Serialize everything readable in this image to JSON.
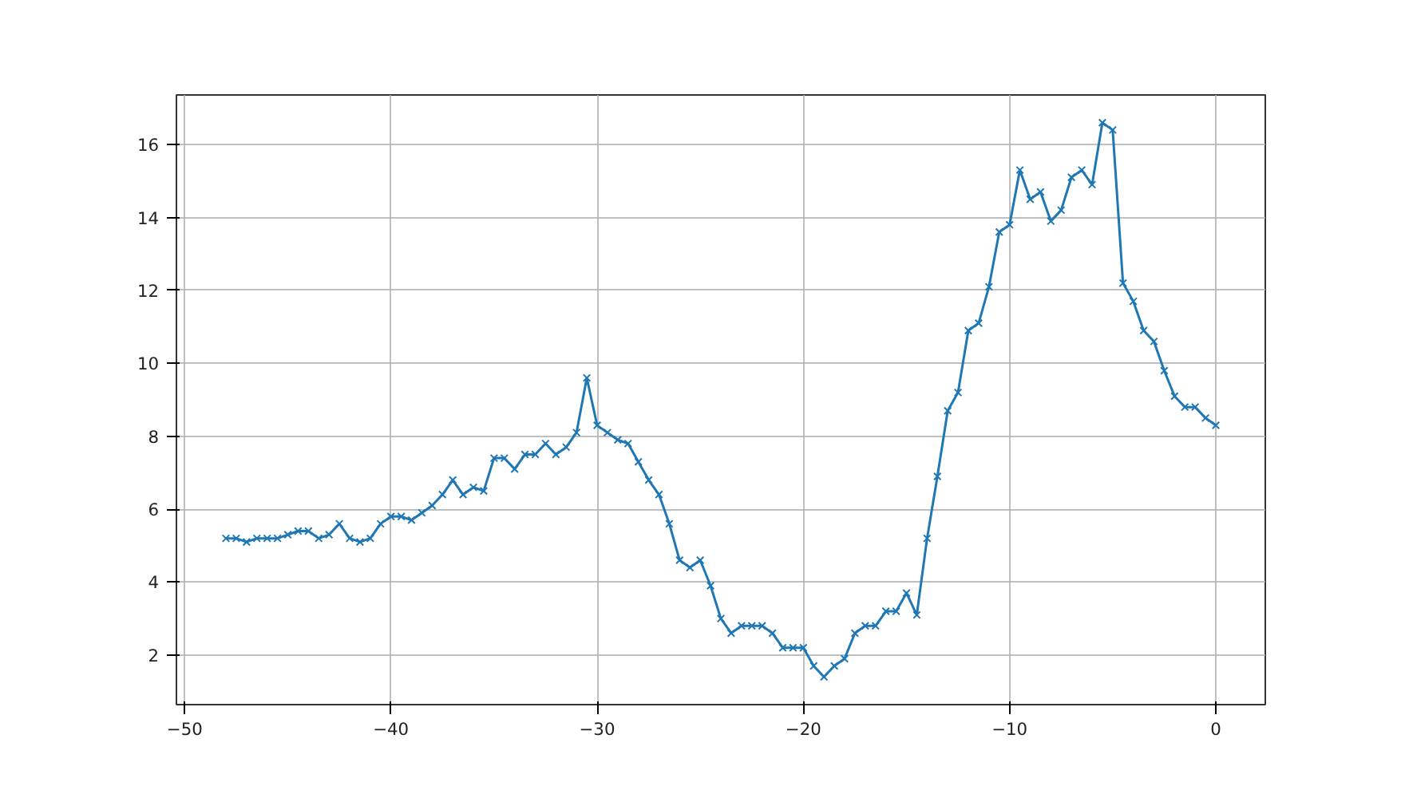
{
  "chart_data": {
    "type": "line",
    "marker": "cross",
    "line_style": "solid",
    "grid": true,
    "x": [
      -48,
      -47.5,
      -47,
      -46.5,
      -46,
      -45.5,
      -45,
      -44.5,
      -44,
      -43.5,
      -43,
      -42.5,
      -42,
      -41.5,
      -41,
      -40.5,
      -40,
      -39.5,
      -39,
      -38.5,
      -38,
      -37.5,
      -37,
      -36.5,
      -36,
      -35.5,
      -35,
      -34.5,
      -34,
      -33.5,
      -33,
      -32.5,
      -32,
      -31.5,
      -31,
      -30.5,
      -30,
      -29.5,
      -29,
      -28.5,
      -28,
      -27.5,
      -27,
      -26.5,
      -26,
      -25.5,
      -25,
      -24.5,
      -24,
      -23.5,
      -23,
      -22.5,
      -22,
      -21.5,
      -21,
      -20.5,
      -20,
      -19.5,
      -19,
      -18.5,
      -18,
      -17.5,
      -17,
      -16.5,
      -16,
      -15.5,
      -15,
      -14.5,
      -14,
      -13.5,
      -13,
      -12.5,
      -12,
      -11.5,
      -11,
      -10.5,
      -10,
      -9.5,
      -9,
      -8.5,
      -8,
      -7.5,
      -7,
      -6.5,
      -6,
      -5.5,
      -5,
      -4.5,
      -4,
      -3.5,
      -3,
      -2.5,
      -2,
      -1.5,
      -1,
      -0.5,
      0
    ],
    "series": [
      {
        "color": "#1f77b4",
        "values": [
          5.2,
          5.2,
          5.1,
          5.2,
          5.2,
          5.2,
          5.3,
          5.4,
          5.4,
          5.2,
          5.3,
          5.6,
          5.2,
          5.1,
          5.2,
          5.6,
          5.8,
          5.8,
          5.7,
          5.9,
          6.1,
          6.4,
          6.8,
          6.4,
          6.6,
          6.5,
          7.4,
          7.4,
          7.1,
          7.5,
          7.5,
          7.8,
          7.5,
          7.7,
          8.1,
          9.6,
          8.3,
          8.1,
          7.9,
          7.8,
          7.3,
          6.8,
          6.4,
          5.6,
          4.6,
          4.4,
          4.6,
          3.9,
          3.0,
          2.6,
          2.8,
          2.8,
          2.8,
          2.6,
          2.2,
          2.2,
          2.2,
          1.7,
          1.4,
          1.7,
          1.9,
          2.6,
          2.8,
          2.8,
          3.2,
          3.2,
          3.7,
          3.1,
          5.2,
          6.9,
          8.7,
          9.2,
          10.9,
          11.1,
          12.1,
          13.6,
          13.8,
          15.3,
          14.5,
          14.7,
          13.9,
          14.2,
          15.1,
          15.3,
          14.9,
          16.6,
          16.4,
          12.2,
          11.7,
          10.9,
          10.6,
          9.8,
          9.1,
          8.8,
          8.8,
          8.5,
          8.3
        ]
      }
    ],
    "xlim": [
      -50.4,
      2.4
    ],
    "ylim": [
      0.64,
      17.36
    ],
    "xticks": [
      {
        "value": -50,
        "label": "−50"
      },
      {
        "value": -40,
        "label": "−40"
      },
      {
        "value": -30,
        "label": "−30"
      },
      {
        "value": -20,
        "label": "−20"
      },
      {
        "value": -10,
        "label": "−10"
      },
      0
    ],
    "yticks": [
      2,
      4,
      6,
      8,
      10,
      12,
      14,
      16
    ]
  }
}
